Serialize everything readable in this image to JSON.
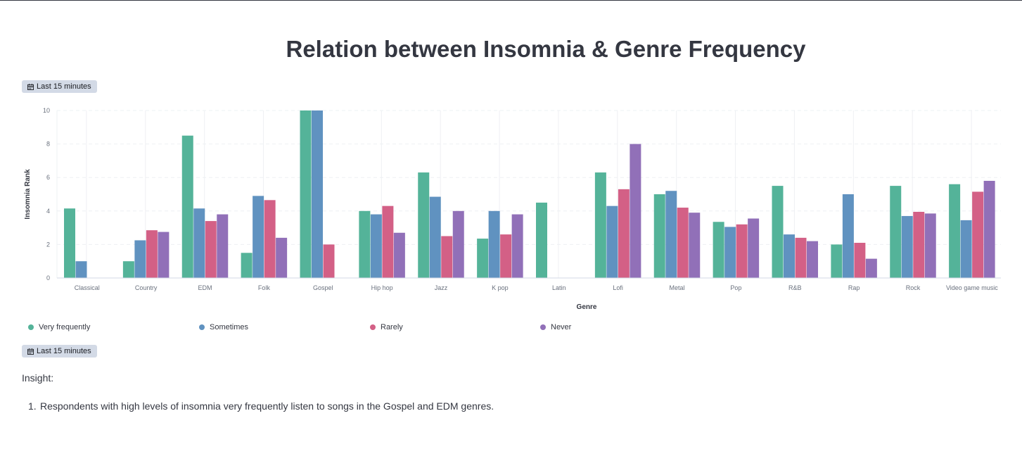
{
  "page": {
    "title": "Relation between Insomnia & Genre Frequency",
    "time_badge_top": "Last 15 minutes",
    "time_badge_bottom": "Last 15 minutes",
    "badge_icon": "calendar-icon",
    "insight_heading": "Insight:",
    "insights": [
      {
        "number": "1.",
        "text": "Respondents with high levels of insomnia very frequently listen to songs in the Gospel and EDM genres."
      }
    ]
  },
  "chart_data": {
    "type": "bar",
    "title": "Relation between Insomnia & Genre Frequency",
    "xlabel": "Genre",
    "ylabel": "Insomnia Rank",
    "ylim": [
      0,
      10
    ],
    "yticks": [
      0,
      2,
      4,
      6,
      8,
      10
    ],
    "grid": true,
    "legend_position": "bottom",
    "categories": [
      "Classical",
      "Country",
      "EDM",
      "Folk",
      "Gospel",
      "Hip hop",
      "Jazz",
      "K pop",
      "Latin",
      "Lofi",
      "Metal",
      "Pop",
      "R&B",
      "Rap",
      "Rock",
      "Video game music"
    ],
    "series": [
      {
        "name": "Very frequently",
        "color": "#54b399",
        "values": [
          4.15,
          1.0,
          8.5,
          1.5,
          10.0,
          4.0,
          6.3,
          2.35,
          4.5,
          6.3,
          5.0,
          3.35,
          5.5,
          2.0,
          5.5,
          5.6
        ]
      },
      {
        "name": "Sometimes",
        "color": "#6092c0",
        "values": [
          1.0,
          2.25,
          4.15,
          4.9,
          10.0,
          3.8,
          4.85,
          4.0,
          null,
          4.3,
          5.2,
          3.05,
          2.6,
          5.0,
          3.7,
          3.45
        ]
      },
      {
        "name": "Rarely",
        "color": "#d36086",
        "values": [
          null,
          2.85,
          3.4,
          4.65,
          2.0,
          4.3,
          2.5,
          2.6,
          null,
          5.3,
          4.2,
          3.2,
          2.4,
          2.1,
          3.95,
          5.15
        ]
      },
      {
        "name": "Never",
        "color": "#9170b8",
        "values": [
          null,
          2.75,
          3.8,
          2.4,
          null,
          2.7,
          4.0,
          3.8,
          null,
          8.0,
          3.9,
          3.55,
          2.2,
          1.15,
          3.85,
          5.8
        ]
      }
    ]
  }
}
